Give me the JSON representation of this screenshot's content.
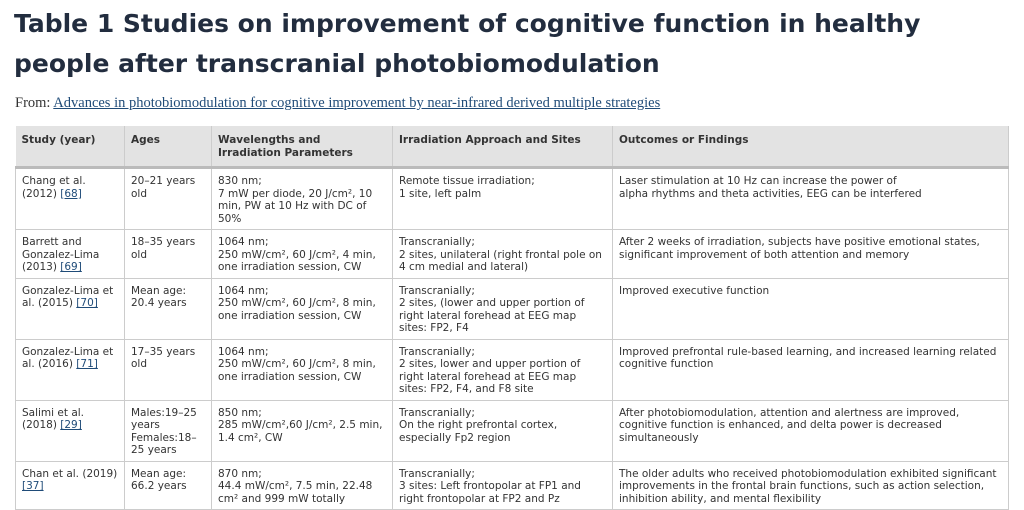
{
  "header": {
    "title": "Table 1 Studies on improvement of cognitive function in healthy people after transcranial photobiomodulation",
    "from_label": "From:",
    "from_link": "Advances in photobiomodulation for cognitive improvement by near-infrared derived multiple strategies"
  },
  "table": {
    "columns": [
      "Study (year)",
      "Ages",
      "Wavelengths and Irradiation Parameters",
      "Irradiation Approach and Sites",
      "Outcomes or Findings"
    ],
    "rows": [
      {
        "study": {
          "text": "Chang et al. (2012)",
          "ref": "[68]"
        },
        "ages": [
          "20–21 years old"
        ],
        "params": [
          "830 nm;",
          "7 mW per diode, 20 J/cm², 10 min, PW at 10 Hz with DC of 50%"
        ],
        "approach": [
          "Remote tissue irradiation;",
          "1 site, left palm"
        ],
        "outcome": [
          "Laser stimulation at 10 Hz can increase the power of",
          "alpha rhythms and theta activities, EEG can be interfered"
        ]
      },
      {
        "study": {
          "text": "Barrett and Gonzalez-Lima (2013)",
          "ref": "[69]"
        },
        "ages": [
          "18–35 years old"
        ],
        "params": [
          "1064 nm;",
          "250 mW/cm², 60 J/cm², 4 min, one irradiation session, CW"
        ],
        "approach": [
          "Transcranially;",
          "2 sites, unilateral (right frontal pole on 4 cm medial and lateral)"
        ],
        "outcome": [
          "After 2 weeks of irradiation, subjects have positive emotional states, significant improvement of both attention and memory"
        ]
      },
      {
        "study": {
          "text": "Gonzalez-Lima et al. (2015)",
          "ref": "[70]"
        },
        "ages": [
          "Mean age: 20.4 years"
        ],
        "params": [
          "1064 nm;",
          "250 mW/cm², 60 J/cm², 8 min, one irradiation session, CW"
        ],
        "approach": [
          "Transcranially;",
          "2 sites, (lower and upper portion of right lateral forehead at EEG map sites: FP2, F4"
        ],
        "outcome": [
          "Improved executive function"
        ]
      },
      {
        "study": {
          "text": "Gonzalez-Lima et al. (2016)",
          "ref": "[71]"
        },
        "ages": [
          "17–35 years old"
        ],
        "params": [
          "1064 nm;",
          "250 mW/cm², 60 J/cm², 8 min, one irradiation session, CW"
        ],
        "approach": [
          "Transcranially;",
          "2 sites, lower and upper portion of right lateral forehead at EEG map sites: FP2, F4, and F8 site"
        ],
        "outcome": [
          "Improved prefrontal rule-based learning, and increased learning related cognitive function"
        ]
      },
      {
        "study": {
          "text": "Salimi et al. (2018)",
          "ref": "[29]"
        },
        "ages": [
          "Males:19–25 years Females:18–25 years"
        ],
        "params": [
          "850 nm;",
          "285 mW/cm²,60 J/cm², 2.5 min, 1.4 cm², CW"
        ],
        "approach": [
          "Transcranially;",
          "On the right prefrontal cortex, especially Fp2 region"
        ],
        "outcome": [
          "After photobiomodulation, attention and alertness are improved, cognitive function is enhanced, and delta power is decreased simultaneously"
        ]
      },
      {
        "study": {
          "text": "Chan et al. (2019)",
          "ref": "[37]"
        },
        "ages": [
          "Mean age: 66.2 years"
        ],
        "params": [
          "870 nm;",
          "44.4 mW/cm², 7.5 min, 22.48 cm² and 999 mW totally"
        ],
        "approach": [
          "Transcranially;",
          "3 sites: Left frontopolar at FP1 and right frontopolar at FP2 and Pz"
        ],
        "outcome": [
          "The older adults who received photobiomodulation exhibited significant improvements in the frontal brain functions, such as action selection, inhibition ability, and mental flexibility"
        ]
      }
    ]
  }
}
